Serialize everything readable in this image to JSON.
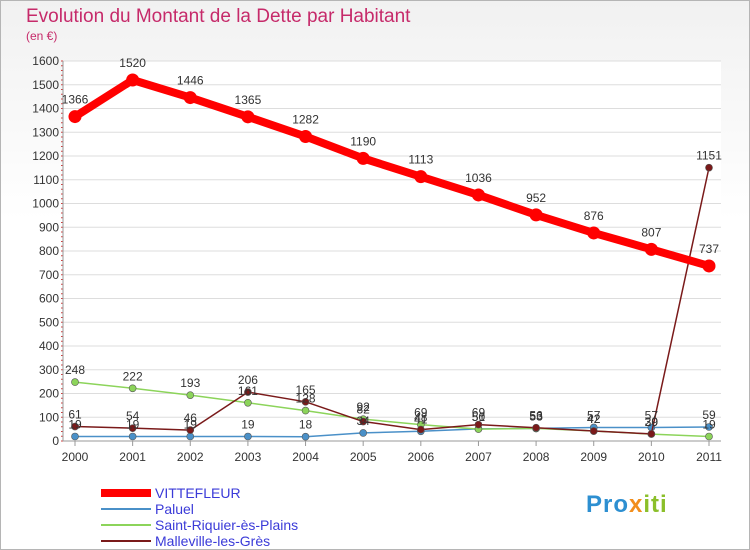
{
  "title": "Evolution du Montant de la Dette par Habitant",
  "subtitle": "(en €)",
  "logo_text": "Proxiti",
  "chart_data": {
    "type": "line",
    "title": "Evolution du Montant de la Dette par Habitant",
    "subtitle": "(en €)",
    "x": [
      "2000",
      "2001",
      "2002",
      "2003",
      "2004",
      "2005",
      "2006",
      "2007",
      "2008",
      "2009",
      "2010",
      "2011"
    ],
    "ylim": [
      0,
      1600
    ],
    "yticks": [
      0,
      100,
      200,
      300,
      400,
      500,
      600,
      700,
      800,
      900,
      1000,
      1100,
      1200,
      1300,
      1400,
      1500,
      1600
    ],
    "grid": "horizontal",
    "legend_position": "bottom-left",
    "series": [
      {
        "name": "VITTEFLEUR",
        "color": "#ff0000",
        "values": [
          1366,
          1520,
          1446,
          1365,
          1282,
          1190,
          1113,
          1036,
          952,
          876,
          807,
          737
        ],
        "labels": [
          "1366",
          "1520",
          "1446",
          "1365",
          "1282",
          "1190",
          "1113",
          "1036",
          "952",
          "876",
          "807",
          "737"
        ]
      },
      {
        "name": "Paluel",
        "color": "#4a90c8",
        "values": [
          19,
          19,
          19,
          19,
          18,
          34,
          41,
          51,
          53,
          57,
          57,
          59
        ],
        "labels": [
          "19",
          "19",
          "19",
          "19",
          "18",
          "34",
          "41",
          "51",
          "53",
          "57",
          "57",
          "59"
        ]
      },
      {
        "name": "Saint-Riquier-ès-Plains",
        "color": "#8cd45a",
        "values": [
          248,
          222,
          193,
          161,
          128,
          92,
          69,
          50,
          53,
          42,
          29,
          19
        ],
        "labels": [
          "248",
          "222",
          "193",
          "161",
          "128",
          "92",
          "69",
          "50",
          "53",
          "42",
          "29",
          "19"
        ]
      },
      {
        "name": "Malleville-les-Grès",
        "color": "#7a1a1a",
        "values": [
          61,
          54,
          46,
          206,
          165,
          82,
          48,
          69,
          56,
          42,
          30,
          1151
        ],
        "labels": [
          "61",
          "54",
          "46",
          "206",
          "165",
          "82",
          "48",
          "69",
          "56",
          "42",
          "30",
          "1151"
        ]
      }
    ]
  }
}
